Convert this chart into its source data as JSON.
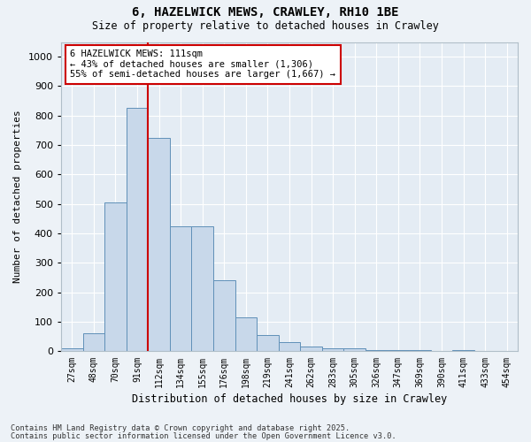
{
  "title_line1": "6, HAZELWICK MEWS, CRAWLEY, RH10 1BE",
  "title_line2": "Size of property relative to detached houses in Crawley",
  "xlabel": "Distribution of detached houses by size in Crawley",
  "ylabel": "Number of detached properties",
  "bar_color": "#c8d8ea",
  "bar_edge_color": "#6090b8",
  "bg_color": "#e4ecf4",
  "grid_color": "#ffffff",
  "fig_bg_color": "#edf2f7",
  "categories": [
    "27sqm",
    "48sqm",
    "70sqm",
    "91sqm",
    "112sqm",
    "134sqm",
    "155sqm",
    "176sqm",
    "198sqm",
    "219sqm",
    "241sqm",
    "262sqm",
    "283sqm",
    "305sqm",
    "326sqm",
    "347sqm",
    "369sqm",
    "390sqm",
    "411sqm",
    "433sqm",
    "454sqm"
  ],
  "values": [
    10,
    60,
    505,
    825,
    725,
    425,
    425,
    240,
    115,
    55,
    30,
    15,
    10,
    10,
    5,
    5,
    5,
    0,
    5,
    0,
    0
  ],
  "property_line_label": "6 HAZELWICK MEWS: 111sqm",
  "annotation_line2": "← 43% of detached houses are smaller (1,306)",
  "annotation_line3": "55% of semi-detached houses are larger (1,667) →",
  "red_line_color": "#cc0000",
  "prop_bin_index": 4,
  "ylim": [
    0,
    1050
  ],
  "yticks": [
    0,
    100,
    200,
    300,
    400,
    500,
    600,
    700,
    800,
    900,
    1000
  ],
  "footnote1": "Contains HM Land Registry data © Crown copyright and database right 2025.",
  "footnote2": "Contains public sector information licensed under the Open Government Licence v3.0."
}
